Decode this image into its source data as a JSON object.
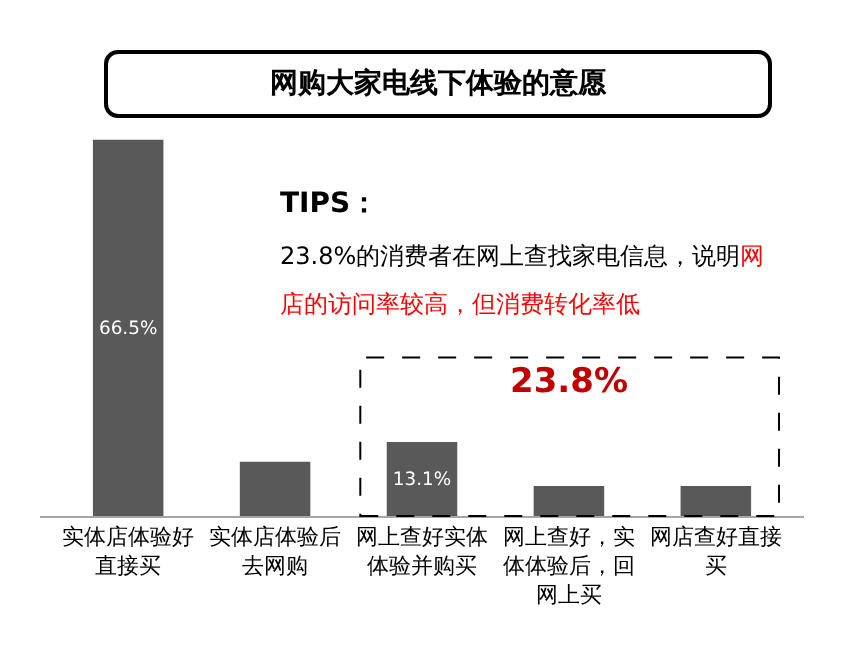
{
  "chart_data": {
    "type": "bar",
    "title": "网购大家电线下体验的意愿",
    "categories": [
      "实体店体验好直接买",
      "实体店体验后去网购",
      "网上查好实体体验并购买",
      "网上查好，实体体验后，回网上买",
      "网店查好直接买"
    ],
    "values": [
      66.5,
      9.6,
      13.1,
      5.3,
      5.3
    ],
    "value_labels": [
      "66.5%",
      null,
      "13.1%",
      null,
      null
    ],
    "color": "#595959",
    "grid": false,
    "annotations": [
      "TIPS：",
      "23.8%的消费者在网上查找家电信息，说明",
      "网店的访问率较高，但消费转化率低",
      "23.8%"
    ]
  }
}
